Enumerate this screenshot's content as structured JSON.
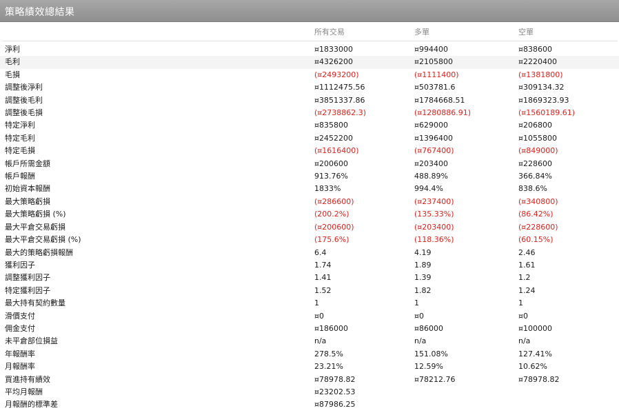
{
  "title": "策略績效總結果",
  "columns": [
    "所有交易",
    "多單",
    "空單"
  ],
  "rows": [
    {
      "label": "淨利",
      "values": [
        "¤1833000",
        "¤994400",
        "¤838600"
      ],
      "neg": false
    },
    {
      "label": "毛利",
      "values": [
        "¤4326200",
        "¤2105800",
        "¤2220400"
      ],
      "neg": false
    },
    {
      "label": "毛損",
      "values": [
        "(¤2493200)",
        "(¤1111400)",
        "(¤1381800)"
      ],
      "neg": true
    },
    {
      "label": "調整後淨利",
      "values": [
        "¤1112475.56",
        "¤503781.6",
        "¤309134.32"
      ],
      "neg": false
    },
    {
      "label": "調整後毛利",
      "values": [
        "¤3851337.86",
        "¤1784668.51",
        "¤1869323.93"
      ],
      "neg": false
    },
    {
      "label": "調整後毛損",
      "values": [
        "(¤2738862.3)",
        "(¤1280886.91)",
        "(¤1560189.61)"
      ],
      "neg": true
    },
    {
      "label": "特定淨利",
      "values": [
        "¤835800",
        "¤629000",
        "¤206800"
      ],
      "neg": false
    },
    {
      "label": "特定毛利",
      "values": [
        "¤2452200",
        "¤1396400",
        "¤1055800"
      ],
      "neg": false
    },
    {
      "label": "特定毛損",
      "values": [
        "(¤1616400)",
        "(¤767400)",
        "(¤849000)"
      ],
      "neg": true
    },
    {
      "label": "帳戶所需金額",
      "values": [
        "¤200600",
        "¤203400",
        "¤228600"
      ],
      "neg": false
    },
    {
      "label": "帳戶報酬",
      "values": [
        "913.76%",
        "488.89%",
        "366.84%"
      ],
      "neg": false
    },
    {
      "label": "初始資本報酬",
      "values": [
        "1833%",
        "994.4%",
        "838.6%"
      ],
      "neg": false
    },
    {
      "label": "最大策略虧損",
      "values": [
        "(¤286600)",
        "(¤237400)",
        "(¤340800)"
      ],
      "neg": true
    },
    {
      "label": "最大策略虧損 (%)",
      "values": [
        "(200.2%)",
        "(135.33%)",
        "(86.42%)"
      ],
      "neg": true
    },
    {
      "label": "最大平倉交易虧損",
      "values": [
        "(¤200600)",
        "(¤203400)",
        "(¤228600)"
      ],
      "neg": true
    },
    {
      "label": "最大平倉交易虧損 (%)",
      "values": [
        "(175.6%)",
        "(118.36%)",
        "(60.15%)"
      ],
      "neg": true
    },
    {
      "label": "最大的策略虧損報酬",
      "values": [
        "6.4",
        "4.19",
        "2.46"
      ],
      "neg": false
    },
    {
      "label": "獲利因子",
      "values": [
        "1.74",
        "1.89",
        "1.61"
      ],
      "neg": false
    },
    {
      "label": "調整獲利因子",
      "values": [
        "1.41",
        "1.39",
        "1.2"
      ],
      "neg": false
    },
    {
      "label": "特定獲利因子",
      "values": [
        "1.52",
        "1.82",
        "1.24"
      ],
      "neg": false
    },
    {
      "label": "最大持有契約數量",
      "values": [
        "1",
        "1",
        "1"
      ],
      "neg": false
    },
    {
      "label": "滑價支付",
      "values": [
        "¤0",
        "¤0",
        "¤0"
      ],
      "neg": false
    },
    {
      "label": "佣金支付",
      "values": [
        "¤186000",
        "¤86000",
        "¤100000"
      ],
      "neg": false
    },
    {
      "label": "未平倉部位損益",
      "values": [
        "n/a",
        "n/a",
        "n/a"
      ],
      "neg": false
    },
    {
      "label": "年報酬率",
      "values": [
        "278.5%",
        "151.08%",
        "127.41%"
      ],
      "neg": false
    },
    {
      "label": "月報酬率",
      "values": [
        "23.21%",
        "12.59%",
        "10.62%"
      ],
      "neg": false
    },
    {
      "label": "買進持有績效",
      "values": [
        "¤78978.82",
        "¤78212.76",
        "¤78978.82"
      ],
      "neg": false
    },
    {
      "label": "平均月報酬",
      "values": [
        "¤23202.53",
        "",
        ""
      ],
      "neg": false
    },
    {
      "label": "月報酬的標準差",
      "values": [
        "¤87986.25",
        "",
        ""
      ],
      "neg": false
    }
  ]
}
